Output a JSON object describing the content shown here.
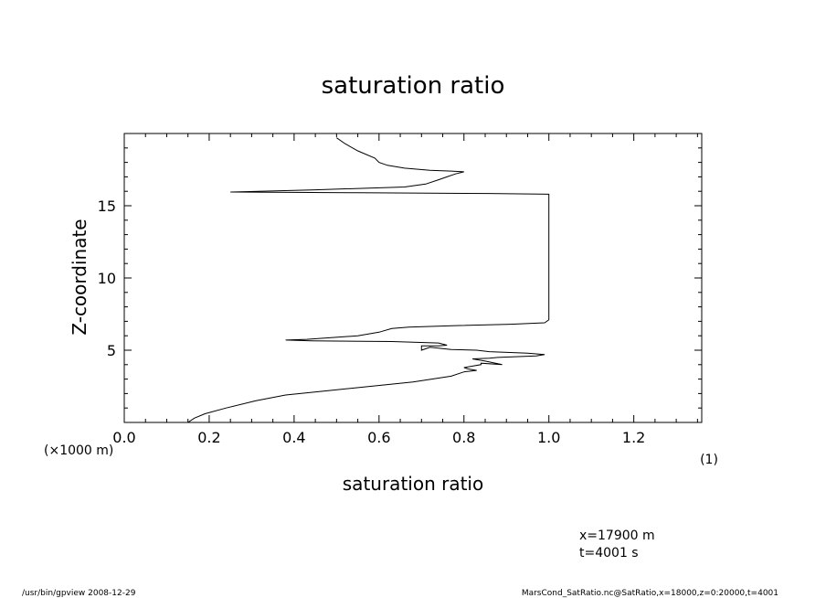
{
  "chart_data": {
    "type": "line",
    "title": "saturation ratio",
    "xlabel": "saturation ratio",
    "x_unit": "(1)",
    "ylabel": "Z-coordinate",
    "y_unit": "(×1000 m)",
    "xlim": [
      0.0,
      1.36
    ],
    "ylim": [
      0,
      20
    ],
    "x_ticks": [
      "0.0",
      "0.2",
      "0.4",
      "0.6",
      "0.8",
      "1.0",
      "1.2"
    ],
    "y_ticks": [
      "5",
      "10",
      "15"
    ],
    "grid": false,
    "series": [
      {
        "points": [
          [
            0.15,
            0.0
          ],
          [
            0.165,
            0.3
          ],
          [
            0.19,
            0.6
          ],
          [
            0.24,
            1.0
          ],
          [
            0.31,
            1.5
          ],
          [
            0.38,
            1.9
          ],
          [
            0.48,
            2.2
          ],
          [
            0.58,
            2.5
          ],
          [
            0.68,
            2.8
          ],
          [
            0.77,
            3.2
          ],
          [
            0.8,
            3.5
          ],
          [
            0.83,
            3.6
          ],
          [
            0.81,
            3.7
          ],
          [
            0.8,
            3.8
          ],
          [
            0.82,
            3.9
          ],
          [
            0.84,
            4.0
          ],
          [
            0.84,
            4.1
          ],
          [
            0.89,
            4.0
          ],
          [
            0.85,
            4.25
          ],
          [
            0.82,
            4.4
          ],
          [
            0.86,
            4.45
          ],
          [
            0.88,
            4.5
          ],
          [
            0.97,
            4.6
          ],
          [
            0.99,
            4.7
          ],
          [
            0.95,
            4.8
          ],
          [
            0.86,
            4.9
          ],
          [
            0.83,
            5.0
          ],
          [
            0.77,
            5.05
          ],
          [
            0.72,
            5.2
          ],
          [
            0.7,
            5.0
          ],
          [
            0.7,
            5.3
          ],
          [
            0.74,
            5.3
          ],
          [
            0.76,
            5.35
          ],
          [
            0.74,
            5.5
          ],
          [
            0.63,
            5.6
          ],
          [
            0.44,
            5.65
          ],
          [
            0.38,
            5.7
          ],
          [
            0.43,
            5.75
          ],
          [
            0.55,
            6.0
          ],
          [
            0.6,
            6.25
          ],
          [
            0.63,
            6.5
          ],
          [
            0.67,
            6.6
          ],
          [
            0.78,
            6.7
          ],
          [
            0.91,
            6.8
          ],
          [
            0.99,
            6.9
          ],
          [
            1.0,
            7.1
          ],
          [
            1.0,
            10.0
          ],
          [
            1.0,
            13.0
          ],
          [
            1.0,
            15.8
          ],
          [
            0.86,
            15.85
          ],
          [
            0.55,
            15.9
          ],
          [
            0.25,
            15.95
          ],
          [
            0.45,
            16.1
          ],
          [
            0.66,
            16.3
          ],
          [
            0.71,
            16.5
          ],
          [
            0.74,
            16.8
          ],
          [
            0.76,
            17.0
          ],
          [
            0.78,
            17.2
          ],
          [
            0.8,
            17.35
          ],
          [
            0.77,
            17.4
          ],
          [
            0.72,
            17.45
          ],
          [
            0.66,
            17.6
          ],
          [
            0.62,
            17.8
          ],
          [
            0.6,
            18.0
          ],
          [
            0.59,
            18.3
          ],
          [
            0.55,
            18.8
          ],
          [
            0.52,
            19.3
          ],
          [
            0.5,
            19.7
          ]
        ]
      }
    ]
  },
  "info": {
    "position": "x=17900 m",
    "time": "t=4001 s"
  },
  "footer": {
    "left": "/usr/bin/gpview   2008-12-29",
    "right": "MarsCond_SatRatio.nc@SatRatio,x=18000,z=0:20000,t=4001"
  }
}
